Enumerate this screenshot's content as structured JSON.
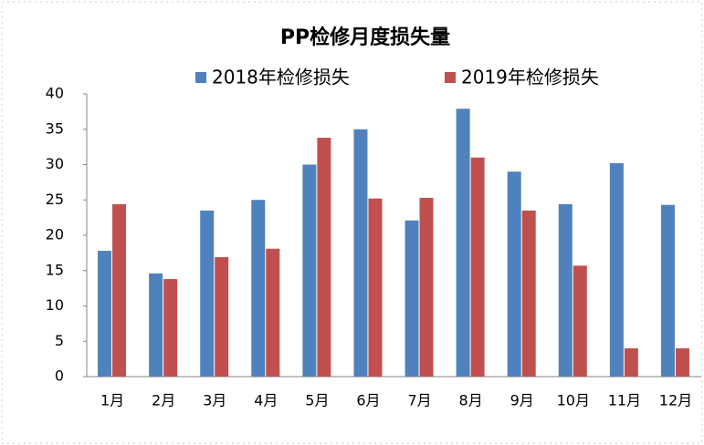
{
  "chart_data": {
    "type": "bar",
    "title": "PP检修月度损失量",
    "categories": [
      "1月",
      "2月",
      "3月",
      "4月",
      "5月",
      "6月",
      "7月",
      "8月",
      "9月",
      "10月",
      "11月",
      "12月"
    ],
    "series": [
      {
        "name": "2018年检修损失",
        "color": "#4f81bd",
        "values": [
          17.8,
          14.6,
          23.5,
          25,
          30,
          35,
          22.1,
          37.9,
          29,
          24.4,
          30.2,
          24.3
        ]
      },
      {
        "name": "2019年检修损失",
        "color": "#c0504d",
        "values": [
          24.4,
          13.8,
          16.9,
          18.1,
          33.8,
          25.2,
          25.3,
          31,
          23.5,
          15.7,
          4,
          4
        ]
      }
    ],
    "ylim": [
      0,
      40
    ],
    "yticks": [
      0,
      5,
      10,
      15,
      20,
      25,
      30,
      35,
      40
    ],
    "grid": false,
    "legend": "top"
  }
}
